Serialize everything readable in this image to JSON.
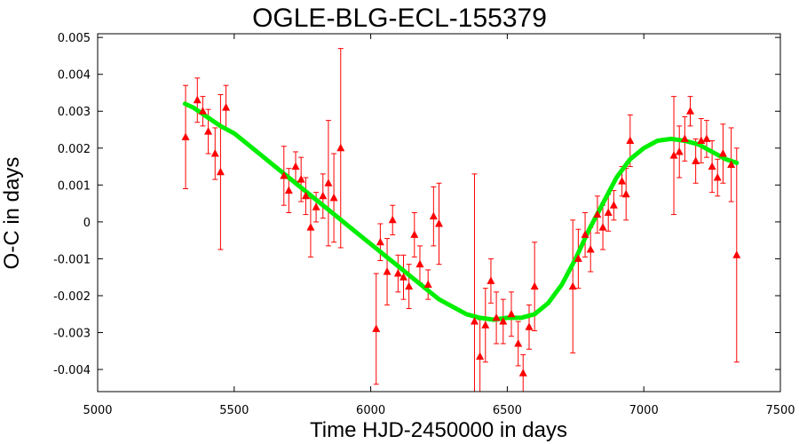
{
  "chart_data": {
    "type": "scatter",
    "title": "OGLE-BLG-ECL-155379",
    "xlabel": "Time HJD-2450000 in days",
    "ylabel": "O-C in days",
    "xlim": [
      5000,
      7500
    ],
    "ylim": [
      -0.0046,
      0.0051
    ],
    "xticks": [
      5000,
      5500,
      6000,
      6500,
      7000,
      7500
    ],
    "xtick_labels": [
      "5000",
      "5500",
      "6000",
      "6500",
      "7000",
      "7500"
    ],
    "yticks": [
      0.005,
      0.004,
      0.003,
      0.002,
      0.001,
      0,
      -0.001,
      -0.002,
      -0.003,
      -0.004
    ],
    "ytick_labels": [
      "0.005",
      "0.004",
      "0.003",
      "0.002",
      "0.001",
      "0",
      "-0.001",
      "-0.002",
      "-0.003",
      "-0.004"
    ],
    "grid": false,
    "colors": {
      "points": "#ff0000",
      "errorbars": "#ff0000",
      "fit": "#00ee00"
    },
    "series": [
      {
        "kind": "scatter-errorbars",
        "marker": "triangle",
        "points": [
          {
            "x": 5322,
            "y": 0.0023,
            "err": 0.0014
          },
          {
            "x": 5365,
            "y": 0.0033,
            "err": 0.0006
          },
          {
            "x": 5385,
            "y": 0.003,
            "err": 0.0004
          },
          {
            "x": 5405,
            "y": 0.00245,
            "err": 0.0006
          },
          {
            "x": 5430,
            "y": 0.00185,
            "err": 0.0007
          },
          {
            "x": 5450,
            "y": 0.00135,
            "err": 0.0021
          },
          {
            "x": 5470,
            "y": 0.0031,
            "err": 0.0006
          },
          {
            "x": 5682,
            "y": 0.00125,
            "err": 0.0008
          },
          {
            "x": 5700,
            "y": 0.00085,
            "err": 0.0006
          },
          {
            "x": 5725,
            "y": 0.0015,
            "err": 0.0004
          },
          {
            "x": 5745,
            "y": 0.00115,
            "err": 0.0006
          },
          {
            "x": 5762,
            "y": 0.0007,
            "err": 0.0005
          },
          {
            "x": 5780,
            "y": -0.00015,
            "err": 0.0008
          },
          {
            "x": 5800,
            "y": 0.0004,
            "err": 0.0004
          },
          {
            "x": 5825,
            "y": 0.0007,
            "err": 0.0006
          },
          {
            "x": 5845,
            "y": 0.00105,
            "err": 0.0017
          },
          {
            "x": 5865,
            "y": 0.00065,
            "err": 0.0012
          },
          {
            "x": 5890,
            "y": 0.002,
            "err": 0.0027
          },
          {
            "x": 6020,
            "y": -0.0029,
            "err": 0.0015
          },
          {
            "x": 6035,
            "y": -0.00055,
            "err": 0.0005
          },
          {
            "x": 6060,
            "y": -0.00135,
            "err": 0.0009
          },
          {
            "x": 6080,
            "y": 5e-05,
            "err": 0.0004
          },
          {
            "x": 6100,
            "y": -0.0014,
            "err": 0.0005
          },
          {
            "x": 6120,
            "y": -0.0015,
            "err": 0.0006
          },
          {
            "x": 6140,
            "y": -0.00175,
            "err": 0.0006
          },
          {
            "x": 6160,
            "y": -0.00035,
            "err": 0.0006
          },
          {
            "x": 6180,
            "y": -0.00115,
            "err": 0.0005
          },
          {
            "x": 6210,
            "y": -0.0017,
            "err": 0.0004
          },
          {
            "x": 6230,
            "y": 0.00015,
            "err": 0.0008
          },
          {
            "x": 6250,
            "y": -5e-05,
            "err": 0.0011
          },
          {
            "x": 6380,
            "y": -0.0027,
            "err": 0.004
          },
          {
            "x": 6400,
            "y": -0.00365,
            "err": 0.001
          },
          {
            "x": 6420,
            "y": -0.0028,
            "err": 0.001
          },
          {
            "x": 6440,
            "y": -0.0016,
            "err": 0.0006
          },
          {
            "x": 6460,
            "y": -0.0026,
            "err": 0.0007
          },
          {
            "x": 6485,
            "y": -0.0027,
            "err": 0.0006
          },
          {
            "x": 6515,
            "y": -0.0025,
            "err": 0.0006
          },
          {
            "x": 6540,
            "y": -0.0033,
            "err": 0.0006
          },
          {
            "x": 6558,
            "y": -0.0041,
            "err": 0.0005
          },
          {
            "x": 6580,
            "y": -0.00285,
            "err": 0.0006
          },
          {
            "x": 6600,
            "y": -0.00175,
            "err": 0.0012
          },
          {
            "x": 6740,
            "y": -0.00175,
            "err": 0.0018
          },
          {
            "x": 6760,
            "y": -0.001,
            "err": 0.0008
          },
          {
            "x": 6785,
            "y": -0.00035,
            "err": 0.0006
          },
          {
            "x": 6805,
            "y": -0.00075,
            "err": 0.0006
          },
          {
            "x": 6830,
            "y": 0.0002,
            "err": 0.0005
          },
          {
            "x": 6850,
            "y": -0.00015,
            "err": 0.0006
          },
          {
            "x": 6870,
            "y": 0.00025,
            "err": 0.0005
          },
          {
            "x": 6890,
            "y": 0.00045,
            "err": 0.0004
          },
          {
            "x": 6920,
            "y": 0.0011,
            "err": 0.0004
          },
          {
            "x": 6935,
            "y": 0.00075,
            "err": 0.0007
          },
          {
            "x": 6950,
            "y": 0.0022,
            "err": 0.0007
          },
          {
            "x": 7110,
            "y": 0.0018,
            "err": 0.0016
          },
          {
            "x": 7130,
            "y": 0.0019,
            "err": 0.0007
          },
          {
            "x": 7150,
            "y": 0.00225,
            "err": 0.0006
          },
          {
            "x": 7170,
            "y": 0.003,
            "err": 0.0004
          },
          {
            "x": 7190,
            "y": 0.00165,
            "err": 0.0006
          },
          {
            "x": 7210,
            "y": 0.0022,
            "err": 0.0006
          },
          {
            "x": 7230,
            "y": 0.00225,
            "err": 0.0005
          },
          {
            "x": 7250,
            "y": 0.0015,
            "err": 0.0007
          },
          {
            "x": 7270,
            "y": 0.0012,
            "err": 0.0005
          },
          {
            "x": 7290,
            "y": 0.00185,
            "err": 0.0008
          },
          {
            "x": 7320,
            "y": 0.00155,
            "err": 0.001
          },
          {
            "x": 7340,
            "y": -0.0009,
            "err": 0.0029
          }
        ]
      },
      {
        "kind": "fit-line",
        "x": [
          5320,
          5350,
          5400,
          5450,
          5500,
          5550,
          5600,
          5650,
          5700,
          5750,
          5800,
          5850,
          5900,
          5950,
          6000,
          6050,
          6100,
          6150,
          6200,
          6250,
          6300,
          6350,
          6400,
          6450,
          6500,
          6550,
          6600,
          6650,
          6700,
          6750,
          6800,
          6850,
          6900,
          6950,
          7000,
          7050,
          7100,
          7150,
          7200,
          7250,
          7300,
          7340
        ],
        "y": [
          0.0032,
          0.0031,
          0.00285,
          0.0026,
          0.0024,
          0.0021,
          0.0018,
          0.0015,
          0.0012,
          0.0009,
          0.0006,
          0.0003,
          0.0,
          -0.0003,
          -0.0006,
          -0.0009,
          -0.0012,
          -0.0015,
          -0.0018,
          -0.0021,
          -0.0023,
          -0.0025,
          -0.0026,
          -0.00265,
          -0.0026,
          -0.0026,
          -0.0025,
          -0.0022,
          -0.0017,
          -0.001,
          -0.0002,
          0.0005,
          0.0012,
          0.0017,
          0.002,
          0.0022,
          0.00225,
          0.0022,
          0.0021,
          0.0019,
          0.0017,
          0.0016
        ]
      }
    ]
  }
}
